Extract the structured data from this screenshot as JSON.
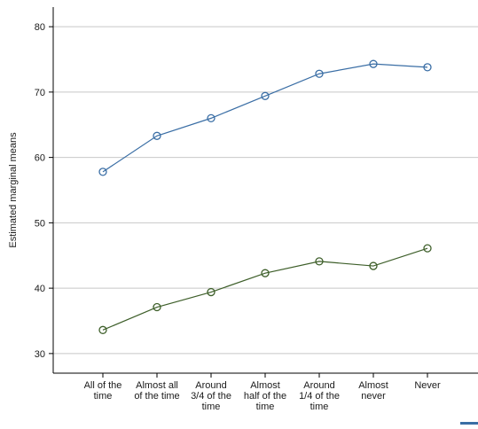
{
  "chart_data": {
    "type": "line",
    "title": "",
    "xlabel": "",
    "ylabel": "Estimated marginal means",
    "ylim": [
      27,
      83
    ],
    "yticks": [
      30,
      40,
      50,
      60,
      70,
      80
    ],
    "grid": true,
    "categories": [
      [
        "All of the",
        "time"
      ],
      [
        "Almost all",
        "of the time"
      ],
      [
        "Around",
        "3/4 of the",
        "time"
      ],
      [
        "Almost",
        "half of the",
        "time"
      ],
      [
        "Around",
        "1/4 of the",
        "time"
      ],
      [
        "Almost",
        "never"
      ],
      [
        "Never"
      ]
    ],
    "series": [
      {
        "values": [
          57.8,
          63.3,
          66.0,
          69.4,
          72.8,
          74.3,
          73.8
        ],
        "color": "#3a6ea5",
        "marker": "hollow-circle"
      },
      {
        "values": [
          33.6,
          37.1,
          39.4,
          42.3,
          44.1,
          43.4,
          46.1
        ],
        "color": "#3e5f2a",
        "marker": "hollow-circle"
      }
    ],
    "legend_fragment_color": "#3a6ea5"
  }
}
